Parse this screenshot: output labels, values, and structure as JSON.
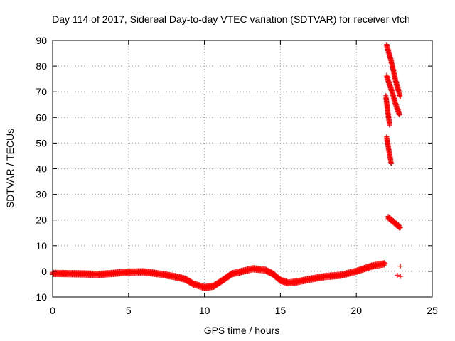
{
  "chart_data": {
    "type": "scatter",
    "title": "Day 114 of 2017, Sidereal Day-to-day VTEC variation (SDTVAR) for receiver vfch",
    "xlabel": "GPS time / hours",
    "ylabel": "SDTVAR / TECUs",
    "xlim": [
      0,
      25
    ],
    "ylim": [
      -10,
      90
    ],
    "xticks": [
      0,
      5,
      10,
      15,
      20,
      25
    ],
    "yticks": [
      -10,
      0,
      10,
      20,
      30,
      40,
      50,
      60,
      70,
      80,
      90
    ],
    "grid": true,
    "marker": "+",
    "marker_color": "#ff0000",
    "series": [
      {
        "name": "SDTVAR",
        "trend": [
          [
            0.0,
            -0.8
          ],
          [
            1.0,
            -0.9
          ],
          [
            2.0,
            -1.0
          ],
          [
            3.0,
            -1.2
          ],
          [
            4.0,
            -0.8
          ],
          [
            5.0,
            -0.3
          ],
          [
            6.0,
            -0.2
          ],
          [
            7.0,
            -1.0
          ],
          [
            8.0,
            -2.0
          ],
          [
            8.7,
            -3.0
          ],
          [
            9.3,
            -5.0
          ],
          [
            10.0,
            -6.3
          ],
          [
            10.6,
            -5.8
          ],
          [
            11.2,
            -3.5
          ],
          [
            11.8,
            -1.0
          ],
          [
            12.5,
            0.0
          ],
          [
            13.2,
            1.0
          ],
          [
            14.0,
            0.5
          ],
          [
            14.5,
            -1.0
          ],
          [
            15.0,
            -3.5
          ],
          [
            15.5,
            -4.5
          ],
          [
            16.0,
            -4.2
          ],
          [
            17.0,
            -3.0
          ],
          [
            18.0,
            -2.0
          ],
          [
            19.0,
            -1.5
          ],
          [
            20.0,
            0.0
          ],
          [
            21.0,
            2.0
          ],
          [
            21.9,
            3.0
          ]
        ],
        "segments": [
          [
            [
              22.0,
              88.0
            ],
            [
              22.3,
              82.0
            ],
            [
              22.6,
              74.0
            ],
            [
              22.9,
              68.0
            ]
          ],
          [
            [
              22.0,
              76.0
            ],
            [
              22.3,
              71.0
            ],
            [
              22.6,
              65.0
            ],
            [
              22.85,
              61.0
            ]
          ],
          [
            [
              21.95,
              68.0
            ],
            [
              22.1,
              61.0
            ],
            [
              22.2,
              57.0
            ]
          ],
          [
            [
              22.0,
              52.0
            ],
            [
              22.15,
              47.0
            ],
            [
              22.3,
              42.0
            ]
          ],
          [
            [
              22.1,
              21.0
            ],
            [
              22.5,
              19.0
            ],
            [
              22.9,
              17.0
            ]
          ]
        ],
        "points": [
          [
            22.9,
            2.0
          ],
          [
            22.7,
            -1.5
          ],
          [
            22.9,
            -2.0
          ]
        ]
      }
    ]
  }
}
